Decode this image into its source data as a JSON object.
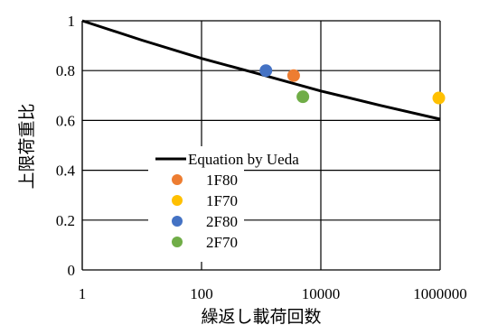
{
  "chart_data": {
    "type": "scatter",
    "xscale": "log",
    "xlim": [
      1,
      1000000
    ],
    "ylim": [
      0,
      1
    ],
    "xticks": [
      "1",
      "100",
      "10000",
      "1000000"
    ],
    "yticks": [
      "0",
      "0.2",
      "0.4",
      "0.6",
      "0.8",
      "1"
    ],
    "xlabel": "繰返し載荷回数",
    "ylabel": "上限荷重比",
    "grid": true,
    "legend": "center",
    "line": {
      "name": "Equation by Ueda",
      "color": "#000000",
      "x": [
        1,
        10,
        100,
        1000,
        10000,
        100000,
        1000000
      ],
      "y": [
        1.0,
        0.922,
        0.849,
        0.784,
        0.718,
        0.66,
        0.605
      ]
    },
    "series": [
      {
        "name": "1F80",
        "color": "#ED7D31",
        "x": [
          3500
        ],
        "y": [
          0.78
        ]
      },
      {
        "name": "1F70",
        "color": "#FFC000",
        "x": [
          950000
        ],
        "y": [
          0.69
        ]
      },
      {
        "name": "2F80",
        "color": "#4472C4",
        "x": [
          1200
        ],
        "y": [
          0.8
        ]
      },
      {
        "name": "2F70",
        "color": "#70AD47",
        "x": [
          5000
        ],
        "y": [
          0.695
        ]
      }
    ]
  }
}
